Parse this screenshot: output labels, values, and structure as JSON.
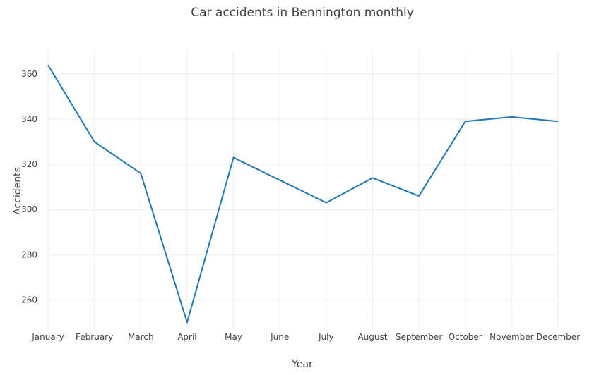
{
  "chart_data": {
    "type": "line",
    "title": "Car accidents in Bennington monthly",
    "xlabel": "Year",
    "ylabel": "Accidents",
    "categories": [
      "January",
      "February",
      "March",
      "April",
      "May",
      "June",
      "July",
      "August",
      "September",
      "October",
      "November",
      "December"
    ],
    "series": [
      {
        "values": [
          364,
          330,
          316,
          250,
          323,
          313,
          303,
          314,
          306,
          339,
          341,
          339
        ],
        "color": "#1f77b4"
      }
    ],
    "ylim": [
      247,
      370
    ],
    "yticks": [
      260,
      280,
      300,
      320,
      340,
      360
    ],
    "grid": true,
    "legend": "none"
  }
}
